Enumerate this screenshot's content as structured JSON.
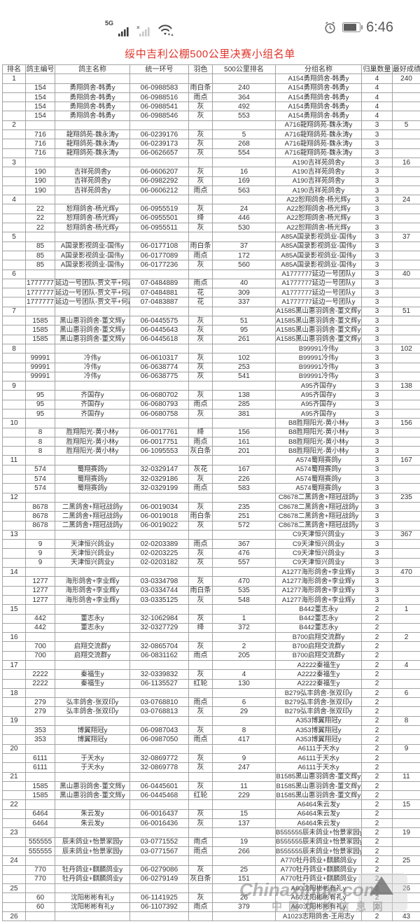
{
  "status_bar": {
    "network_label": "5G",
    "time": "6:46",
    "icons": [
      "signal-bars-icon",
      "no-signal-bars-icon",
      "wifi-icon",
      "alarm-clock-icon",
      "battery-icon"
    ]
  },
  "title": "绥中吉利公棚500公里决赛小组名单",
  "colors": {
    "title": "#df352b",
    "border": "#a3a3a3",
    "text": "#333333"
  },
  "watermark": {
    "line1": "Chinaxinge.com",
    "line2": "中国信鸽信息网",
    "logo": "triangle-pigeon-logo"
  },
  "table": {
    "column_keys": [
      "rank",
      "owner-no",
      "owner-name",
      "ring-no",
      "feather-color",
      "race-rank",
      "group-name",
      "homing-count",
      "best-result"
    ],
    "headers": [
      "排名",
      "鸽主编号",
      "鸽主名称",
      "统一环号",
      "羽色",
      "500公里排名",
      "分组名称",
      "归巢数量",
      "最好成绩"
    ],
    "rows": [
      [
        "1",
        "",
        "",
        "",
        "",
        "",
        "A154勇翔鸽舍-韩勇y",
        "4",
        "240"
      ],
      [
        "",
        "154",
        "勇翔鸽舍-韩勇y",
        "06-0988583",
        "雨白条",
        "240",
        "A154勇翔鸽舍-韩勇y",
        "4",
        ""
      ],
      [
        "",
        "154",
        "勇翔鸽舍-韩勇y",
        "06-0988516",
        "雨点",
        "364",
        "A154勇翔鸽舍-韩勇y",
        "4",
        ""
      ],
      [
        "",
        "154",
        "勇翔鸽舍-韩勇y",
        "06-0988541",
        "灰",
        "492",
        "A154勇翔鸽舍-韩勇y",
        "4",
        ""
      ],
      [
        "",
        "154",
        "勇翔鸽舍-韩勇y",
        "06-0988546",
        "灰",
        "553",
        "A154勇翔鸽舍-韩勇y",
        "4",
        ""
      ],
      [
        "2",
        "",
        "",
        "",
        "",
        "",
        "A716龍翔鸽苑-魏永涛y",
        "3",
        "5"
      ],
      [
        "",
        "716",
        "龍翔鸽苑-魏永涛y",
        "06-0239176",
        "灰",
        "5",
        "A716龍翔鸽苑-魏永涛y",
        "3",
        ""
      ],
      [
        "",
        "716",
        "龍翔鸽苑-魏永涛y",
        "06-0239173",
        "灰",
        "268",
        "A716龍翔鸽苑-魏永涛y",
        "3",
        ""
      ],
      [
        "",
        "716",
        "龍翔鸽苑-魏永涛y",
        "06-0626657",
        "灰",
        "554",
        "A716龍翔鸽苑-魏永涛y",
        "3",
        ""
      ],
      [
        "3",
        "",
        "",
        "",
        "",
        "",
        "A190吉祥苑鸽舍y",
        "3",
        "16"
      ],
      [
        "",
        "190",
        "吉祥苑鸽舍y",
        "06-0606207",
        "灰",
        "16",
        "A190吉祥苑鸽舍y",
        "3",
        ""
      ],
      [
        "",
        "190",
        "吉祥苑鸽舍y",
        "06-0982292",
        "灰",
        "169",
        "A190吉祥苑鸽舍y",
        "3",
        ""
      ],
      [
        "",
        "190",
        "吉祥苑鸽舍y",
        "06-0606212",
        "雨点",
        "563",
        "A190吉祥苑鸽舍y",
        "3",
        ""
      ],
      [
        "4",
        "",
        "",
        "",
        "",
        "",
        "A22恕翔鸽舍-杨光辉y",
        "3",
        "24"
      ],
      [
        "",
        "22",
        "恕翔鸽舍-杨光辉y",
        "06-0955519",
        "灰",
        "24",
        "A22恕翔鸽舍-杨光辉y",
        "3",
        ""
      ],
      [
        "",
        "22",
        "恕翔鸽舍-杨光辉y",
        "06-0955501",
        "绛",
        "446",
        "A22恕翔鸽舍-杨光辉y",
        "3",
        ""
      ],
      [
        "",
        "22",
        "恕翔鸽舍-杨光辉y",
        "06-0955511",
        "灰",
        "530",
        "A22恕翔鸽舍-杨光辉y",
        "3",
        ""
      ],
      [
        "5",
        "",
        "",
        "",
        "",
        "",
        "A85A国录影视鸽业-国伟y",
        "3",
        "37"
      ],
      [
        "",
        "85",
        "A国录影视鸽业-国伟y",
        "06-0177108",
        "雨白条",
        "37",
        "A85A国录影视鸽业-国伟y",
        "3",
        ""
      ],
      [
        "",
        "85",
        "A国录影视鸽业-国伟y",
        "06-0177089",
        "雨点",
        "172",
        "A85A国录影视鸽业-国伟y",
        "3",
        ""
      ],
      [
        "",
        "85",
        "A国录影视鸽业-国伟y",
        "06-0177236",
        "灰",
        "560",
        "A85A国录影视鸽业-国伟y",
        "3",
        ""
      ],
      [
        "6",
        "",
        "",
        "",
        "",
        "",
        "A1777777延边一号团队y",
        "3",
        "40"
      ],
      [
        "",
        "1777777",
        "延边一号团队-贾文平+何磊y",
        "07-0484889",
        "雨点",
        "40",
        "A1777777延边一号团队y",
        "3",
        ""
      ],
      [
        "",
        "1777777",
        "延边一号团队-贾文平+何磊y",
        "07-0484881",
        "花",
        "309",
        "A1777777延边一号团队y",
        "3",
        ""
      ],
      [
        "",
        "1777777",
        "延边一号团队-贾文平+何磊y",
        "07-0483887",
        "花",
        "337",
        "A1777777延边一号团队y",
        "3",
        ""
      ],
      [
        "7",
        "",
        "",
        "",
        "",
        "",
        "A1585黑山惠羽鸽舍-董文辉y",
        "3",
        "51"
      ],
      [
        "",
        "1585",
        "黑山惠羽鸽舍-董文辉y",
        "06-0445575",
        "灰",
        "51",
        "A1585黑山惠羽鸽舍-董文辉y",
        "3",
        ""
      ],
      [
        "",
        "1585",
        "黑山惠羽鸽舍-董文辉y",
        "06-0445643",
        "灰",
        "95",
        "A1585黑山惠羽鸽舍-董文辉y",
        "3",
        ""
      ],
      [
        "",
        "1585",
        "黑山惠羽鸽舍-董文辉y",
        "06-0445618",
        "灰",
        "261",
        "A1585黑山惠羽鸽舍-董文辉y",
        "3",
        ""
      ],
      [
        "8",
        "",
        "",
        "",
        "",
        "",
        "B99991冷伟y",
        "3",
        "102"
      ],
      [
        "",
        "99991",
        "冷伟y",
        "06-0610317",
        "灰",
        "102",
        "B99991冷伟y",
        "3",
        ""
      ],
      [
        "",
        "99991",
        "冷伟y",
        "06-0638774",
        "灰",
        "253",
        "B99991冷伟y",
        "3",
        ""
      ],
      [
        "",
        "99991",
        "冷伟y",
        "06-0638775",
        "灰",
        "541",
        "B99991冷伟y",
        "3",
        ""
      ],
      [
        "9",
        "",
        "",
        "",
        "",
        "",
        "A95齐国存y",
        "3",
        "138"
      ],
      [
        "",
        "95",
        "齐国存y",
        "06-0680702",
        "灰",
        "138",
        "A95齐国存y",
        "3",
        ""
      ],
      [
        "",
        "95",
        "齐国存y",
        "06-0680793",
        "雨点",
        "285",
        "A95齐国存y",
        "3",
        ""
      ],
      [
        "",
        "95",
        "齐国存y",
        "06-0680758",
        "灰",
        "381",
        "A95齐国存y",
        "3",
        ""
      ],
      [
        "10",
        "",
        "",
        "",
        "",
        "",
        "B8胜翔阳光-黄小林y",
        "3",
        "156"
      ],
      [
        "",
        "8",
        "胜翔阳光-黄小林y",
        "06-0017761",
        "绛",
        "156",
        "B8胜翔阳光-黄小林y",
        "3",
        ""
      ],
      [
        "",
        "8",
        "胜翔阳光-黄小林y",
        "06-0017751",
        "雨点",
        "161",
        "B8胜翔阳光-黄小林y",
        "3",
        ""
      ],
      [
        "",
        "8",
        "胜翔阳光-黄小林y",
        "06-1095553",
        "灰白条",
        "201",
        "B8胜翔阳光-黄小林y",
        "3",
        ""
      ],
      [
        "11",
        "",
        "",
        "",
        "",
        "",
        "A574蜀翔赛鸽y",
        "3",
        "167"
      ],
      [
        "",
        "574",
        "蜀翔赛鸽y",
        "32-0329147",
        "灰花",
        "167",
        "A574蜀翔赛鸽y",
        "3",
        ""
      ],
      [
        "",
        "574",
        "蜀翔赛鸽y",
        "32-0329186",
        "灰",
        "226",
        "A574蜀翔赛鸽y",
        "3",
        ""
      ],
      [
        "",
        "574",
        "蜀翔赛鸽y",
        "32-0329199",
        "雨点",
        "583",
        "A574蜀翔赛鸽y",
        "3",
        ""
      ],
      [
        "12",
        "",
        "",
        "",
        "",
        "",
        "C8678二黑鸽舍+翔冠战鸽y",
        "3",
        "235"
      ],
      [
        "",
        "8678",
        "二黑鸽舍+翔冠战鸽y",
        "06-0019034",
        "灰",
        "235",
        "C8678二黑鸽舍+翔冠战鸽y",
        "3",
        ""
      ],
      [
        "",
        "8678",
        "二黑鸽舍+翔冠战鸽y",
        "06-0019018",
        "雨白条",
        "251",
        "C8678二黑鸽舍+翔冠战鸽y",
        "3",
        ""
      ],
      [
        "",
        "8678",
        "二黑鸽舍+翔冠战鸽y",
        "06-0019022",
        "灰",
        "572",
        "C8678二黑鸽舍+翔冠战鸽y",
        "3",
        ""
      ],
      [
        "13",
        "",
        "",
        "",
        "",
        "",
        "C9天津恒兴鸽业y",
        "3",
        "367"
      ],
      [
        "",
        "9",
        "天津恒兴鸽业y",
        "02-0203389",
        "雨点",
        "367",
        "C9天津恒兴鸽业y",
        "3",
        ""
      ],
      [
        "",
        "9",
        "天津恒兴鸽业y",
        "02-0203225",
        "灰",
        "476",
        "C9天津恒兴鸽业y",
        "3",
        ""
      ],
      [
        "",
        "9",
        "天津恒兴鸽业y",
        "02-0203182",
        "灰",
        "557",
        "C9天津恒兴鸽业y",
        "3",
        ""
      ],
      [
        "14",
        "",
        "",
        "",
        "",
        "",
        "A1277海形鸽舍+李业辉y",
        "3",
        "470"
      ],
      [
        "",
        "1277",
        "海形鸽舍+李业辉y",
        "03-0334798",
        "灰",
        "470",
        "A1277海形鸽舍+李业辉y",
        "3",
        ""
      ],
      [
        "",
        "1277",
        "海形鸽舍+李业辉y",
        "03-0334744",
        "雨白条",
        "535",
        "A1277海形鸽舍+李业辉y",
        "3",
        ""
      ],
      [
        "",
        "1277",
        "海形鸽舍+李业辉y",
        "03-0335125",
        "灰",
        "548",
        "A1277海形鸽舍+李业辉y",
        "3",
        ""
      ],
      [
        "15",
        "",
        "",
        "",
        "",
        "",
        "B442董志永y",
        "2",
        "1"
      ],
      [
        "",
        "442",
        "董志永y",
        "32-1062984",
        "灰",
        "1",
        "B442董志永y",
        "2",
        ""
      ],
      [
        "",
        "442",
        "董志永y",
        "32-0327729",
        "绛",
        "372",
        "B442董志永y",
        "2",
        ""
      ],
      [
        "16",
        "",
        "",
        "",
        "",
        "",
        "B700启翔交流群y",
        "2",
        "2"
      ],
      [
        "",
        "700",
        "启翔交流群y",
        "32-0865704",
        "灰",
        "2",
        "B700启翔交流群y",
        "2",
        ""
      ],
      [
        "",
        "700",
        "启翔交流群y",
        "06-0831162",
        "雨点",
        "205",
        "B700启翔交流群y",
        "2",
        ""
      ],
      [
        "17",
        "",
        "",
        "",
        "",
        "",
        "A2222秦福生y",
        "2",
        "4"
      ],
      [
        "",
        "2222",
        "秦福生y",
        "32-0339832",
        "灰",
        "4",
        "A2222秦福生y",
        "2",
        ""
      ],
      [
        "",
        "2222",
        "秦福生y",
        "06-1135527",
        "红轮",
        "130",
        "A2222秦福生y",
        "2",
        ""
      ],
      [
        "18",
        "",
        "",
        "",
        "",
        "",
        "B279弘丰鸽舍-张双印y",
        "2",
        "6"
      ],
      [
        "",
        "279",
        "弘丰鸽舍-张双印y",
        "03-0768810",
        "雨点",
        "6",
        "B279弘丰鸽舍-张双印y",
        "2",
        ""
      ],
      [
        "",
        "279",
        "弘丰鸽舍-张双印y",
        "03-0768813",
        "灰",
        "29",
        "B279弘丰鸽舍-张双印y",
        "2",
        ""
      ],
      [
        "19",
        "",
        "",
        "",
        "",
        "",
        "A353博翼翔冠y",
        "2",
        "8"
      ],
      [
        "",
        "353",
        "博翼翔冠y",
        "06-0987043",
        "灰",
        "8",
        "A353博翼翔冠y",
        "2",
        ""
      ],
      [
        "",
        "353",
        "博翼翔冠y",
        "06-0987050",
        "雨点",
        "417",
        "A353博翼翔冠y",
        "2",
        ""
      ],
      [
        "20",
        "",
        "",
        "",
        "",
        "",
        "A6111于天水y",
        "2",
        "9"
      ],
      [
        "",
        "6111",
        "于天水y",
        "32-0869772",
        "灰",
        "9",
        "A6111于天水y",
        "2",
        ""
      ],
      [
        "",
        "6111",
        "于天水y",
        "32-0869778",
        "灰",
        "247",
        "A6111于天水y",
        "2",
        ""
      ],
      [
        "21",
        "",
        "",
        "",
        "",
        "",
        "B1585黑山惠羽鸽舍-董文辉y",
        "2",
        "11"
      ],
      [
        "",
        "1585",
        "黑山惠羽鸽舍-董文辉y",
        "06-0445601",
        "灰",
        "11",
        "B1585黑山惠羽鸽舍-董文辉y",
        "2",
        ""
      ],
      [
        "",
        "1585",
        "黑山惠羽鸽舍-董文辉y",
        "06-0445468",
        "红轮",
        "229",
        "B1585黑山惠羽鸽舍-董文辉y",
        "2",
        ""
      ],
      [
        "22",
        "",
        "",
        "",
        "",
        "",
        "A6464朱云发y",
        "2",
        "15"
      ],
      [
        "",
        "6464",
        "朱云发y",
        "06-0016437",
        "灰",
        "15",
        "A6464朱云发y",
        "2",
        ""
      ],
      [
        "",
        "6464",
        "朱云发y",
        "06-0016436",
        "灰",
        "137",
        "A6464朱云发y",
        "2",
        ""
      ],
      [
        "23",
        "",
        "",
        "",
        "",
        "",
        "B555555辰未鸽业+怡景家园y",
        "2",
        "19"
      ],
      [
        "",
        "555555",
        "辰未鸽业+怡景家园y",
        "03-0771552",
        "雨点",
        "19",
        "B555555辰未鸽业+怡景家园y",
        "2",
        ""
      ],
      [
        "",
        "555555",
        "辰未鸽业+怡景家园y",
        "03-0771567",
        "雨点",
        "266",
        "B555555辰未鸽业+怡景家园y",
        "2",
        ""
      ],
      [
        "24",
        "",
        "",
        "",
        "",
        "",
        "A770牡丹鸽业+麒麟鸽业y",
        "2",
        "25"
      ],
      [
        "",
        "770",
        "牡丹鸽业+麒麟鸽业y",
        "06-0279086",
        "灰",
        "25",
        "A770牡丹鸽业+麒麟鸽业y",
        "2",
        ""
      ],
      [
        "",
        "770",
        "牡丹鸽业+麒麟鸽业y",
        "06-0279149",
        "灰白条",
        "151",
        "A770牡丹鸽业+麒麟鸽业y",
        "2",
        ""
      ],
      [
        "25",
        "",
        "",
        "",
        "",
        "",
        "A60沈阳彬彬有礼y",
        "2",
        "26"
      ],
      [
        "",
        "60",
        "沈阳彬彬有礼y",
        "06-1141925",
        "灰",
        "26",
        "A60沈阳彬彬有礼y",
        "2",
        ""
      ],
      [
        "",
        "60",
        "沈阳彬彬有礼y",
        "06-1107392",
        "雨点",
        "379",
        "A60沈阳彬彬有礼y",
        "2",
        ""
      ],
      [
        "26",
        "",
        "",
        "",
        "",
        "",
        "A1023志翔鸽舍-王用志y",
        "2",
        "43"
      ]
    ]
  }
}
